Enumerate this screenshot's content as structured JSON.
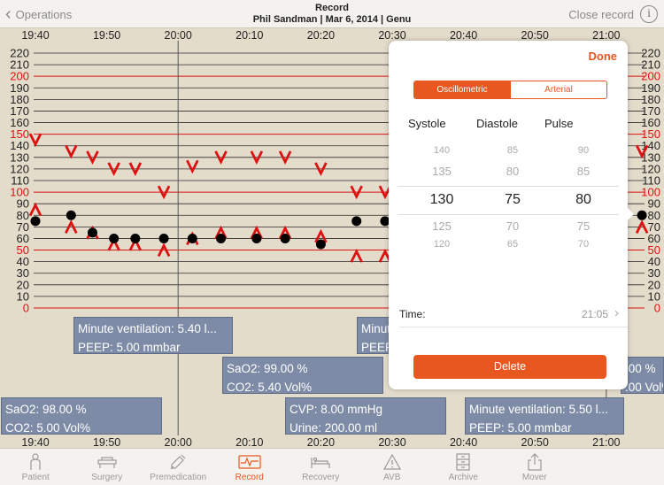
{
  "header": {
    "back_label": "Operations",
    "title": "Record",
    "subtitle": "Phil Sandman | Mar 6, 2014 | Genu",
    "close_label": "Close record",
    "info_glyph": "i"
  },
  "chart_data": {
    "type": "scatter",
    "x_ticks": [
      "19:40",
      "19:50",
      "20:00",
      "20:10",
      "20:20",
      "20:30",
      "20:40",
      "20:50",
      "21:00"
    ],
    "y_ticks": [
      "220",
      "210",
      "200",
      "190",
      "180",
      "170",
      "160",
      "150",
      "140",
      "130",
      "120",
      "110",
      "100",
      "90",
      "80",
      "70",
      "60",
      "50",
      "40",
      "30",
      "20",
      "10",
      "0"
    ],
    "ylim": [
      0,
      220
    ],
    "red_lines": [
      200,
      150,
      100,
      50,
      0
    ],
    "series": [
      {
        "values": [
          [
            "19:40",
            75
          ],
          [
            "19:45",
            80
          ],
          [
            "19:48",
            65
          ],
          [
            "19:51",
            60
          ],
          [
            "19:54",
            60
          ],
          [
            "19:58",
            60
          ],
          [
            "20:02",
            60
          ],
          [
            "20:06",
            60
          ],
          [
            "20:11",
            60
          ],
          [
            "20:15",
            60
          ],
          [
            "20:20",
            55
          ],
          [
            "20:25",
            75
          ],
          [
            "20:29",
            75
          ],
          [
            "21:05",
            80
          ]
        ]
      },
      {
        "values": [
          [
            "19:40",
            145
          ],
          [
            "19:45",
            135
          ],
          [
            "19:48",
            130
          ],
          [
            "19:51",
            120
          ],
          [
            "19:54",
            120
          ],
          [
            "19:58",
            100
          ],
          [
            "20:02",
            122
          ],
          [
            "20:06",
            130
          ],
          [
            "20:11",
            130
          ],
          [
            "20:15",
            130
          ],
          [
            "20:20",
            120
          ],
          [
            "20:25",
            100
          ],
          [
            "20:29",
            100
          ],
          [
            "21:05",
            135
          ]
        ]
      },
      {
        "values": [
          [
            "19:40",
            85
          ],
          [
            "19:45",
            70
          ],
          [
            "19:48",
            65
          ],
          [
            "19:51",
            55
          ],
          [
            "19:54",
            55
          ],
          [
            "19:58",
            50
          ],
          [
            "20:02",
            60
          ],
          [
            "20:06",
            65
          ],
          [
            "20:11",
            65
          ],
          [
            "20:15",
            65
          ],
          [
            "20:20",
            62
          ],
          [
            "20:25",
            45
          ],
          [
            "20:29",
            45
          ],
          [
            "21:05",
            70
          ]
        ]
      }
    ]
  },
  "notes": [
    {
      "id": "mv1",
      "lines": [
        "Minute ventilation: 5.40 l...",
        "PEEP: 5.00 mmbar"
      ]
    },
    {
      "id": "mv2",
      "lines": [
        "Minute ventilation: 5.40 l...",
        "PEEP: 5.00 mmbar"
      ]
    },
    {
      "id": "sao1",
      "lines": [
        "SaO2: 99.00 %",
        "CO2: 5.40 Vol%"
      ]
    },
    {
      "id": "sao2",
      "lines": [
        "SaO2: 98.00 %",
        "CO2: 5.00 Vol%"
      ]
    },
    {
      "id": "cvp",
      "lines": [
        "CVP: 8.00 mmHg",
        "Urine: 200.00 ml"
      ]
    },
    {
      "id": "mv3",
      "lines": [
        "Minute ventilation: 5.50 l...",
        "PEEP: 5.00 mmbar"
      ]
    },
    {
      "id": "sao3",
      "lines": [
        ".00 %",
        ".00 Vol%"
      ]
    }
  ],
  "popup": {
    "done_label": "Done",
    "segments": [
      "Oscillometric",
      "Arterial"
    ],
    "columns": [
      "Systole",
      "Diastole",
      "Pulse"
    ],
    "picker": {
      "systole": [
        "140",
        "135",
        "130",
        "125",
        "120"
      ],
      "diastole": [
        "85",
        "80",
        "75",
        "70",
        "65"
      ],
      "pulse": [
        "90",
        "85",
        "80",
        "75",
        "70"
      ]
    },
    "time_label": "Time:",
    "time_value": "21:05",
    "delete_label": "Delete"
  },
  "tabs": [
    {
      "label": "Patient",
      "icon": "person-icon"
    },
    {
      "label": "Surgery",
      "icon": "bed-icon"
    },
    {
      "label": "Premedication",
      "icon": "syringe-icon"
    },
    {
      "label": "Record",
      "icon": "ecg-icon"
    },
    {
      "label": "Recovery",
      "icon": "recovery-bed-icon"
    },
    {
      "label": "AVB",
      "icon": "warning-icon"
    },
    {
      "label": "Archive",
      "icon": "archive-icon"
    },
    {
      "label": "Mover",
      "icon": "share-icon"
    }
  ],
  "active_tab": "Record",
  "colors": {
    "accent": "#e8571f",
    "red_marker": "#dd1111",
    "note_box": "#7d8ba7"
  }
}
